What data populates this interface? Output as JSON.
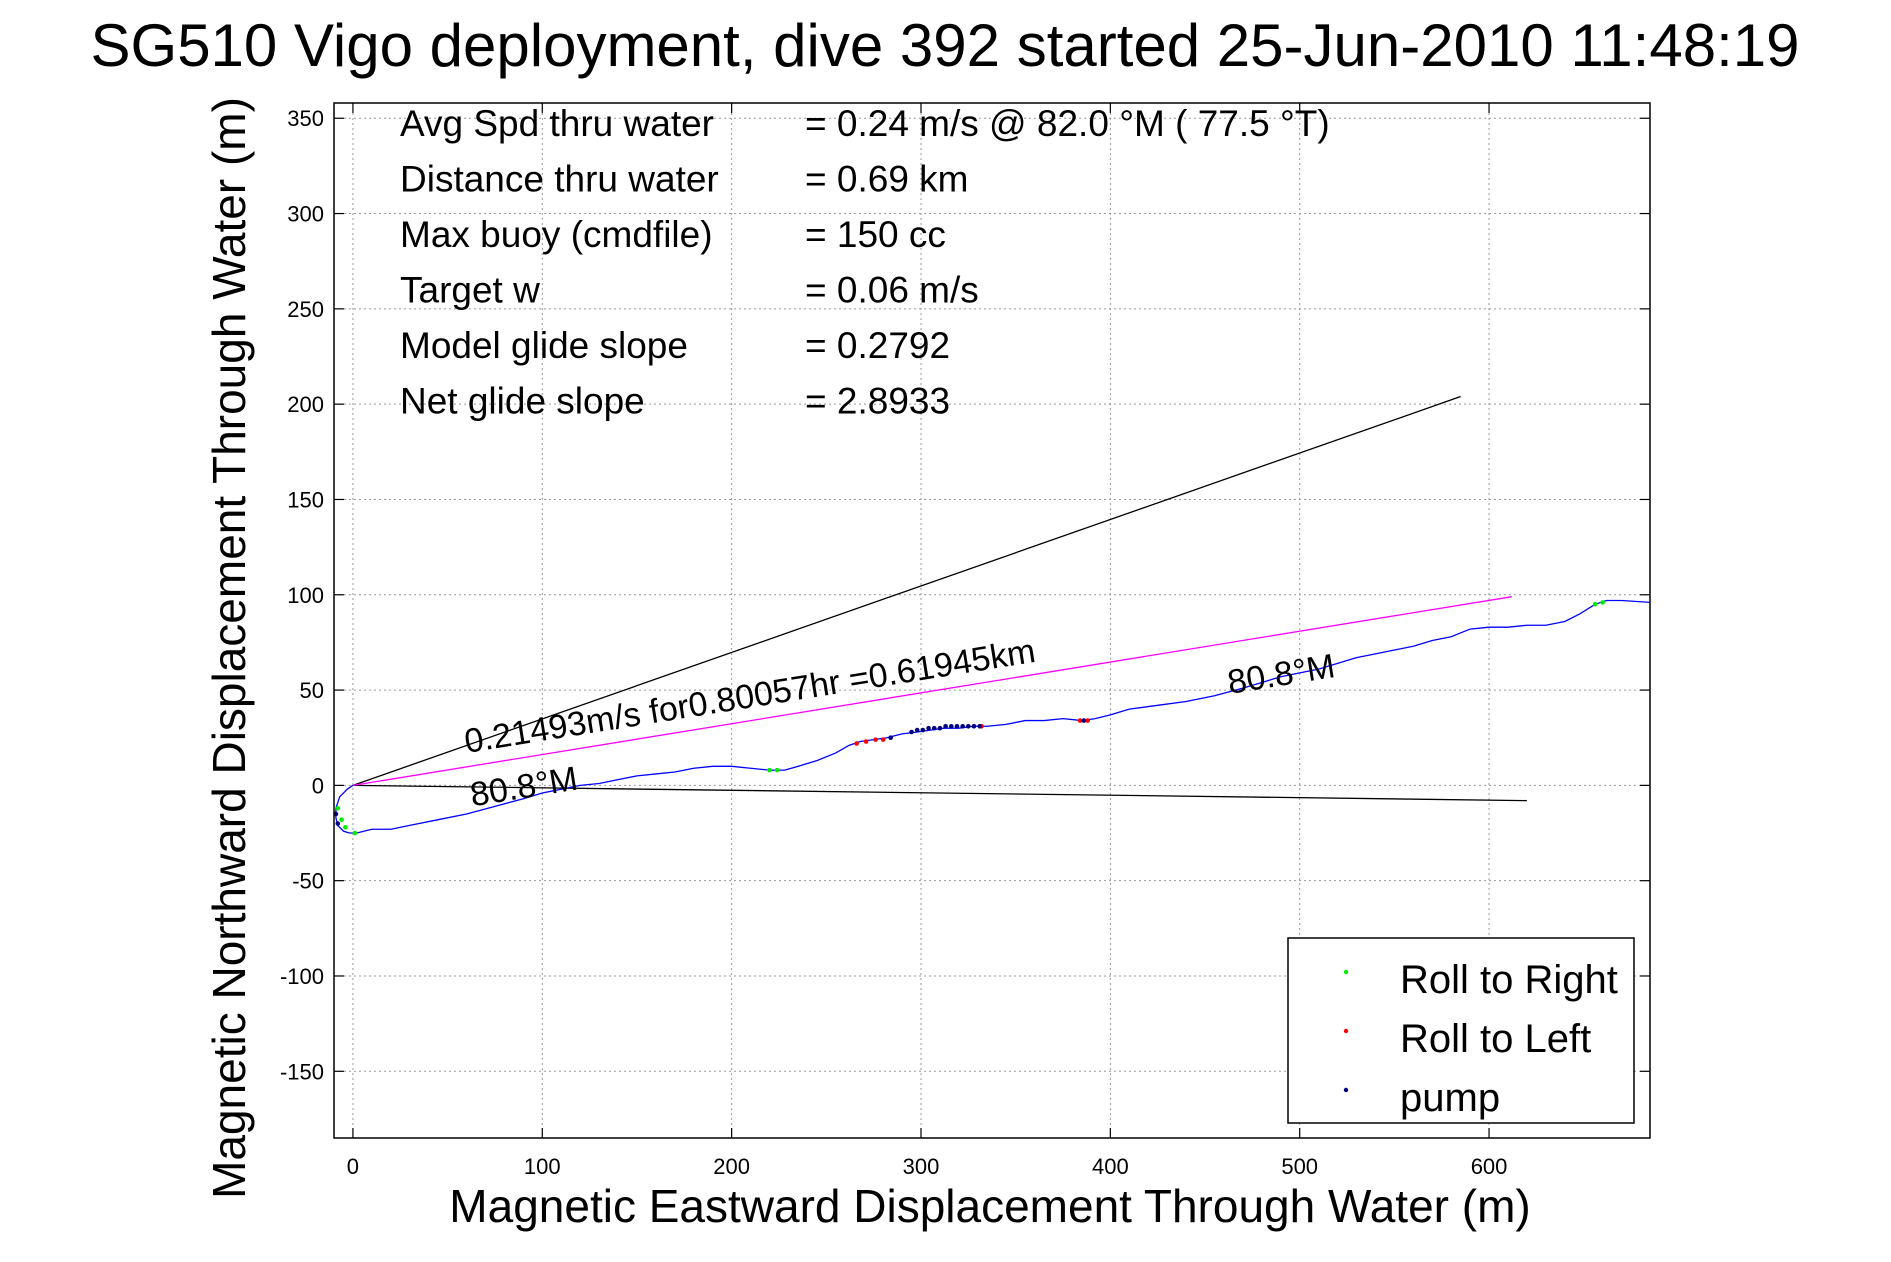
{
  "chart_data": {
    "type": "scatter",
    "title": "SG510 Vigo deployment, dive 392 started 25-Jun-2010 11:48:19",
    "xlabel": "Magnetic Eastward Displacement Through Water (m)",
    "ylabel": "Magnetic Northward Displacement Through Water (m)",
    "xlim": [
      -10,
      685
    ],
    "ylim": [
      -185,
      358
    ],
    "x_ticks": [
      0,
      100,
      200,
      300,
      400,
      500,
      600
    ],
    "y_ticks": [
      -150,
      -100,
      -50,
      0,
      50,
      100,
      150,
      200,
      250,
      300,
      350
    ],
    "grid": true,
    "legend_position": "bottom-right",
    "info_lines": [
      {
        "label": "Avg Spd thru water",
        "value": "=  0.24 m/s @  82.0 °M ( 77.5 °T)"
      },
      {
        "label": "Distance thru water",
        "value": "=  0.69 km"
      },
      {
        "label": "Max buoy (cmdfile)",
        "value": "= 150 cc"
      },
      {
        "label": "Target w",
        "value": "= 0.06 m/s"
      },
      {
        "label": "Model glide slope",
        "value": "= 0.2792"
      },
      {
        "label": "Net glide slope",
        "value": "= 2.8933"
      }
    ],
    "annotations": [
      {
        "text": "0.21493m/s for0.80057hr =0.61945km",
        "x": 60,
        "y": 17,
        "angle_deg": -9.1
      },
      {
        "text": "80.8°M",
        "x": 63,
        "y": -11,
        "angle_deg": -9.1
      },
      {
        "text": "80.8°M",
        "x": 463,
        "y": 48,
        "angle_deg": -9.1
      }
    ],
    "lines": [
      {
        "name": "black-upper",
        "color": "#000000",
        "x": [
          0,
          585
        ],
        "y": [
          0,
          204
        ]
      },
      {
        "name": "black-lower",
        "color": "#000000",
        "x": [
          0,
          620
        ],
        "y": [
          0,
          -8
        ]
      },
      {
        "name": "magenta-current",
        "color": "#ff00ff",
        "x": [
          0,
          612
        ],
        "y": [
          0,
          99
        ]
      }
    ],
    "track": {
      "color": "#0000ff",
      "x": [
        0,
        -3,
        -7,
        -9,
        -9,
        -8,
        -5,
        -2,
        2,
        10,
        20,
        30,
        45,
        60,
        75,
        90,
        100,
        110,
        120,
        130,
        140,
        150,
        160,
        170,
        180,
        190,
        200,
        210,
        220,
        228,
        235,
        245,
        255,
        262,
        268,
        275,
        282,
        290,
        298,
        305,
        312,
        320,
        328,
        335,
        345,
        355,
        365,
        375,
        385,
        392,
        400,
        410,
        425,
        440,
        455,
        470,
        480,
        490,
        500,
        510,
        520,
        530,
        540,
        550,
        560,
        570,
        580,
        590,
        600,
        610,
        620,
        630,
        640,
        648,
        656,
        662,
        670,
        685
      ],
      "y": [
        0,
        -2,
        -6,
        -12,
        -17,
        -21,
        -24,
        -25,
        -25,
        -23,
        -23,
        -21,
        -18,
        -15,
        -11,
        -7,
        -4,
        -2,
        0,
        1,
        3,
        5,
        6,
        7,
        9,
        10,
        10,
        9,
        8,
        8,
        10,
        13,
        17,
        21,
        23,
        24,
        25,
        27,
        28,
        29,
        30,
        30,
        31,
        31,
        32,
        34,
        34,
        35,
        34,
        35,
        37,
        40,
        42,
        44,
        47,
        51,
        54,
        57,
        59,
        61,
        64,
        67,
        69,
        71,
        73,
        76,
        78,
        82,
        83,
        83,
        84,
        84,
        86,
        90,
        95,
        97,
        97,
        96
      ]
    },
    "series": [
      {
        "name": "Roll to Right",
        "color": "#00ee00",
        "x": [
          -8,
          -6,
          -4,
          1,
          220,
          224,
          656,
          660
        ],
        "y": [
          -12,
          -18,
          -22,
          -25,
          8,
          8,
          95,
          96
        ]
      },
      {
        "name": "Roll to Left",
        "color": "#ff0000",
        "x": [
          266,
          271,
          276,
          280,
          332,
          384,
          388
        ],
        "y": [
          22,
          23,
          24,
          24,
          31,
          34,
          34
        ]
      },
      {
        "name": "pump",
        "color": "#000080",
        "x": [
          -9,
          -8,
          284,
          295,
          298,
          301,
          304,
          307,
          310,
          313,
          316,
          319,
          322,
          325,
          328,
          331,
          386
        ],
        "y": [
          -15,
          -20,
          25,
          28,
          29,
          29,
          30,
          30,
          30,
          31,
          31,
          31,
          31,
          31,
          31,
          31,
          34
        ]
      }
    ]
  }
}
